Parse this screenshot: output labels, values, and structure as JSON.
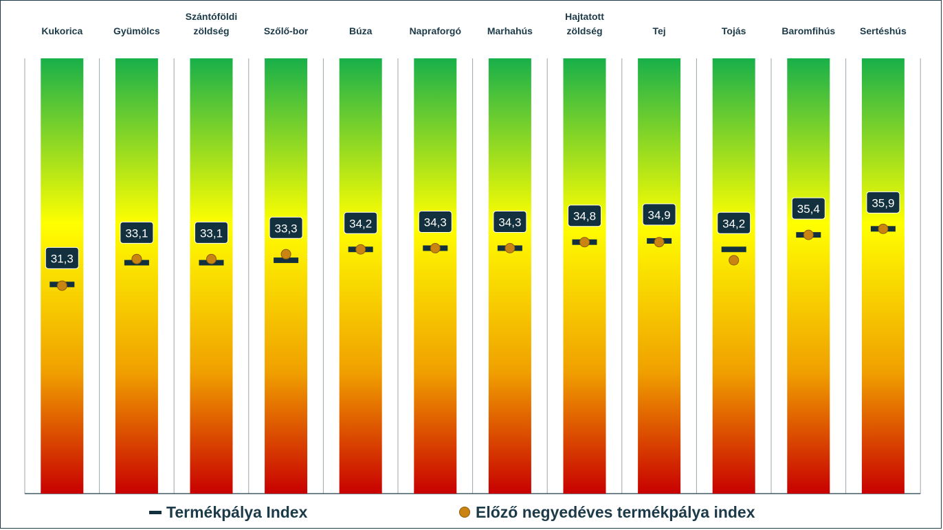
{
  "chart_data": {
    "type": "bullet",
    "categories": [
      [
        "Kukorica"
      ],
      [
        "Gyümölcs"
      ],
      [
        "Szántóföldi",
        "zöldség"
      ],
      [
        "Szőlő-bor"
      ],
      [
        "Búza"
      ],
      [
        "Napraforgó"
      ],
      [
        "Marhahús"
      ],
      [
        "Hajtatott",
        "zöldség"
      ],
      [
        "Tej"
      ],
      [
        "Tojás"
      ],
      [
        "Baromfihús"
      ],
      [
        "Sertéshús"
      ]
    ],
    "series": [
      {
        "name": "Termékpálya Index",
        "values": [
          31.3,
          33.1,
          33.1,
          33.3,
          34.2,
          34.3,
          34.3,
          34.8,
          34.9,
          34.2,
          35.4,
          35.9
        ],
        "labels": [
          "31,3",
          "33,1",
          "33,1",
          "33,3",
          "34,2",
          "34,3",
          "34,3",
          "34,8",
          "34,9",
          "34,2",
          "35,4",
          "35,9"
        ],
        "color": "#12303d"
      },
      {
        "name": "Előző negyedéves termékpálya index",
        "values": [
          31.2,
          33.4,
          33.4,
          33.8,
          34.2,
          34.3,
          34.3,
          34.8,
          34.8,
          33.3,
          35.4,
          35.9
        ],
        "color": "#c98412"
      }
    ],
    "ylim": [
      14,
      50
    ],
    "gradient": [
      "#18b04a",
      "#ffff00",
      "#f0a000",
      "#c80000"
    ],
    "legend": "bottom"
  },
  "legend": {
    "current_label": "Termékpálya Index",
    "previous_label": "Előző negyedéves termékpálya index"
  }
}
